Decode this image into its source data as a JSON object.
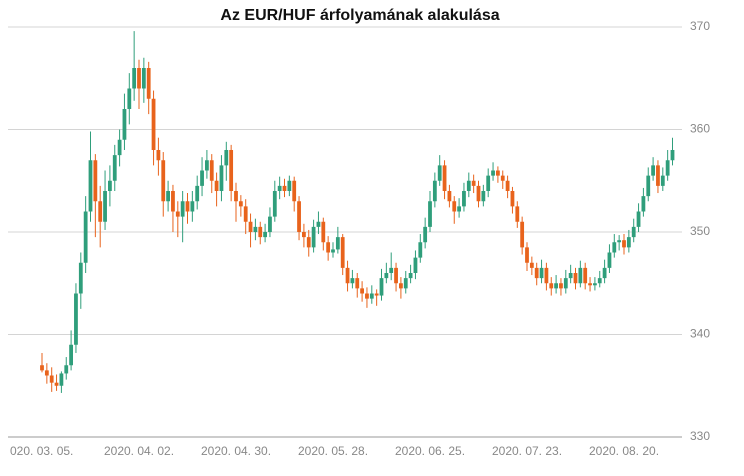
{
  "chart_data": {
    "type": "candlestick",
    "title": "Az EUR/HUF árfolyamának alakulása",
    "up_color": "#2f9e7b",
    "down_color": "#e8631c",
    "ylim": [
      330,
      370
    ],
    "yticks": [
      330,
      340,
      350,
      360,
      370
    ],
    "grid": true,
    "categories": [
      "020. 03. 05.",
      null,
      null,
      null,
      null,
      null,
      null,
      null,
      null,
      null,
      null,
      null,
      null,
      null,
      null,
      null,
      null,
      null,
      null,
      null,
      "2020. 04. 02.",
      null,
      null,
      null,
      null,
      null,
      null,
      null,
      null,
      null,
      null,
      null,
      null,
      null,
      null,
      null,
      null,
      null,
      null,
      null,
      "2020. 04. 30.",
      null,
      null,
      null,
      null,
      null,
      null,
      null,
      null,
      null,
      null,
      null,
      null,
      null,
      null,
      null,
      null,
      null,
      null,
      null,
      "2020. 05. 28.",
      null,
      null,
      null,
      null,
      null,
      null,
      null,
      null,
      null,
      null,
      null,
      null,
      null,
      null,
      null,
      null,
      null,
      null,
      null,
      "2020. 06. 25.",
      null,
      null,
      null,
      null,
      null,
      null,
      null,
      null,
      null,
      null,
      null,
      null,
      null,
      null,
      null,
      null,
      null,
      null,
      null,
      "2020. 07. 23.",
      null,
      null,
      null,
      null,
      null,
      null,
      null,
      null,
      null,
      null,
      null,
      null,
      null,
      null,
      null,
      null,
      null,
      null,
      null,
      "2020. 08. 20.",
      null,
      null,
      null,
      null,
      null,
      null,
      null,
      null,
      null,
      null
    ],
    "candles": [
      [
        337,
        338.2,
        336.3,
        336.5
      ],
      [
        336.5,
        337.2,
        335.2,
        336
      ],
      [
        336,
        336.8,
        334.4,
        335.3
      ],
      [
        335.3,
        336.1,
        334.5,
        335
      ],
      [
        335,
        336.4,
        334.3,
        336.2
      ],
      [
        336.2,
        337.8,
        335.6,
        337
      ],
      [
        337,
        340.4,
        336.5,
        339
      ],
      [
        339,
        345,
        338.2,
        344
      ],
      [
        344,
        348,
        342.5,
        347
      ],
      [
        347,
        353.5,
        346,
        352
      ],
      [
        352,
        359.8,
        351,
        357
      ],
      [
        357,
        357.6,
        349.5,
        353
      ],
      [
        353,
        354.5,
        348.5,
        351
      ],
      [
        351,
        356,
        350.2,
        354
      ],
      [
        354,
        356.5,
        352.5,
        355
      ],
      [
        355,
        358.5,
        354,
        357.5
      ],
      [
        357.5,
        360,
        356.4,
        359
      ],
      [
        359,
        363.5,
        358,
        362
      ],
      [
        362,
        365.5,
        360.5,
        364
      ],
      [
        364,
        369.6,
        362.8,
        366
      ],
      [
        366,
        366.8,
        362,
        364
      ],
      [
        364,
        367,
        362.6,
        366
      ],
      [
        366,
        366.6,
        361.5,
        363
      ],
      [
        363,
        363.8,
        356.5,
        358
      ],
      [
        358,
        359.2,
        355.5,
        357
      ],
      [
        357,
        357.8,
        351.5,
        353
      ],
      [
        353,
        355,
        352,
        354
      ],
      [
        354,
        354.6,
        350,
        352
      ],
      [
        352,
        353,
        349.5,
        351.5
      ],
      [
        351.5,
        354,
        349,
        353
      ],
      [
        353,
        353.8,
        350.8,
        352
      ],
      [
        352,
        354,
        351,
        353
      ],
      [
        353,
        355.5,
        352.2,
        354.5
      ],
      [
        354.5,
        357.3,
        353.5,
        356
      ],
      [
        356,
        358,
        355.2,
        357
      ],
      [
        357,
        357.6,
        353.8,
        355
      ],
      [
        355,
        355.8,
        352.5,
        354
      ],
      [
        354,
        357.5,
        353,
        356.5
      ],
      [
        356.5,
        358.8,
        355,
        358
      ],
      [
        358,
        358.5,
        353,
        354
      ],
      [
        354,
        354.8,
        351,
        353
      ],
      [
        353,
        353.6,
        351.5,
        352.5
      ],
      [
        352.5,
        353.2,
        349.8,
        351
      ],
      [
        351,
        351.8,
        348.5,
        350
      ],
      [
        350,
        351.3,
        349.2,
        350.5
      ],
      [
        350.5,
        351,
        348.8,
        349.5
      ],
      [
        349.5,
        350.8,
        349,
        350
      ],
      [
        350,
        352.4,
        349.5,
        351.5
      ],
      [
        351.5,
        355,
        351,
        354
      ],
      [
        354,
        355.4,
        353.2,
        354.5
      ],
      [
        354.5,
        355.2,
        353.4,
        354
      ],
      [
        354,
        355.5,
        353.5,
        355
      ],
      [
        355,
        355.4,
        352,
        353
      ],
      [
        353,
        353.5,
        349.2,
        350
      ],
      [
        350,
        350.8,
        348.5,
        349.5
      ],
      [
        349.5,
        350.2,
        347.6,
        348.5
      ],
      [
        348.5,
        351.2,
        348,
        350.5
      ],
      [
        350.5,
        352,
        349.8,
        351
      ],
      [
        351,
        351.4,
        348.2,
        349
      ],
      [
        349,
        349.6,
        347.2,
        348
      ],
      [
        348,
        349,
        347.5,
        348.3
      ],
      [
        348.3,
        350.5,
        347.9,
        349.5
      ],
      [
        349.5,
        349.8,
        345.8,
        346.5
      ],
      [
        346.5,
        347.2,
        344.2,
        345
      ],
      [
        345,
        346.3,
        344.5,
        345.5
      ],
      [
        345.5,
        346,
        343.6,
        344.5
      ],
      [
        344.5,
        345.2,
        343.2,
        344
      ],
      [
        344,
        344.6,
        342.6,
        343.5
      ],
      [
        343.5,
        344.8,
        343,
        344
      ],
      [
        344,
        344.4,
        342.8,
        343.8
      ],
      [
        343.8,
        346.4,
        343.3,
        345.5
      ],
      [
        345.5,
        347,
        345,
        346
      ],
      [
        346,
        348,
        345.3,
        346.5
      ],
      [
        346.5,
        347,
        344.2,
        345
      ],
      [
        345,
        345.6,
        343.5,
        344.5
      ],
      [
        344.5,
        346.2,
        344,
        345.5
      ],
      [
        345.5,
        346.8,
        345,
        346
      ],
      [
        346,
        348.2,
        345.4,
        347.5
      ],
      [
        347.5,
        349.8,
        347,
        349
      ],
      [
        349,
        351.4,
        348.4,
        350.5
      ],
      [
        350.5,
        354,
        350,
        353
      ],
      [
        353,
        355.8,
        352.4,
        355
      ],
      [
        355,
        357.5,
        354.5,
        356.5
      ],
      [
        356.5,
        357,
        353.2,
        354
      ],
      [
        354,
        354.6,
        352.4,
        353
      ],
      [
        353,
        353.5,
        350.8,
        352
      ],
      [
        352,
        353.3,
        351.4,
        352.5
      ],
      [
        352.5,
        354.8,
        352,
        354
      ],
      [
        354,
        355.8,
        353.4,
        355
      ],
      [
        355,
        355.6,
        353.8,
        354.5
      ],
      [
        354.5,
        355,
        352.4,
        353
      ],
      [
        353,
        354.6,
        352.5,
        354
      ],
      [
        354,
        356.2,
        353.4,
        355.5
      ],
      [
        355.5,
        356.8,
        355,
        356
      ],
      [
        356,
        356.4,
        354.8,
        355.5
      ],
      [
        355.5,
        356,
        354.2,
        355
      ],
      [
        355,
        355.5,
        353.3,
        354
      ],
      [
        354,
        354.4,
        351.8,
        352.5
      ],
      [
        352.5,
        353,
        350.4,
        351
      ],
      [
        351,
        351.5,
        347.8,
        348.5
      ],
      [
        348.5,
        349,
        346.2,
        347
      ],
      [
        347,
        347.6,
        345.8,
        346.5
      ],
      [
        346.5,
        347,
        344.8,
        345.5
      ],
      [
        345.5,
        347.3,
        345,
        346.5
      ],
      [
        346.5,
        347,
        344.3,
        345
      ],
      [
        345,
        345.6,
        343.8,
        344.5
      ],
      [
        344.5,
        345.8,
        344,
        345
      ],
      [
        345,
        345.5,
        343.8,
        344.5
      ],
      [
        344.5,
        346.3,
        344,
        345.5
      ],
      [
        345.5,
        346.8,
        345,
        346
      ],
      [
        346,
        346.5,
        344.4,
        345
      ],
      [
        345,
        347.2,
        344.6,
        346.5
      ],
      [
        346.5,
        347,
        344.4,
        345
      ],
      [
        345,
        345.6,
        344.2,
        344.8
      ],
      [
        344.8,
        345.6,
        344.3,
        345
      ],
      [
        345,
        346.2,
        344.6,
        345.5
      ],
      [
        345.5,
        347.3,
        345,
        346.5
      ],
      [
        346.5,
        348.8,
        346,
        348
      ],
      [
        348,
        349.8,
        347.5,
        349
      ],
      [
        349,
        349.7,
        348.2,
        349.2
      ],
      [
        349.2,
        349.8,
        347.8,
        348.5
      ],
      [
        348.5,
        350.2,
        348,
        349.5
      ],
      [
        349.5,
        351.3,
        349,
        350.5
      ],
      [
        350.5,
        352.8,
        350,
        352
      ],
      [
        352,
        354.3,
        351.5,
        353.5
      ],
      [
        353.5,
        356.3,
        353,
        355.5
      ],
      [
        355.5,
        357.3,
        355,
        356.5
      ],
      [
        356.5,
        357,
        353.8,
        354.5
      ],
      [
        354.5,
        356.3,
        354,
        355.5
      ],
      [
        355.5,
        358,
        355,
        357
      ],
      [
        357,
        359.2,
        356.5,
        358
      ]
    ]
  }
}
